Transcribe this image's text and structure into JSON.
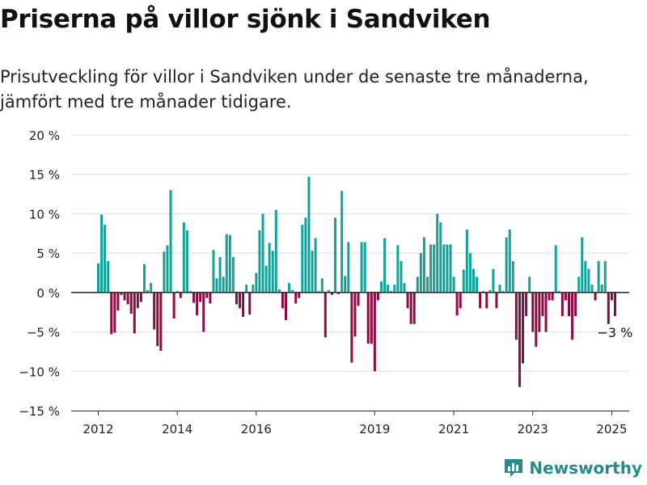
{
  "header": {
    "title": "Priserna på villor sjönk i Sandviken",
    "subtitle": "Prisutveckling för villor i Sandviken under de senaste tre månaderna, jämfört med tre månader tidigare."
  },
  "brand": {
    "name": "Newsworthy",
    "icon": "newsworthy-chart-logo-icon"
  },
  "colors": {
    "positive": "#12a297",
    "negative": "#8c0b42",
    "grid": "#dddddd",
    "zero": "#333333",
    "text": "#222222",
    "brand": "#2a8a86"
  },
  "chart_data": {
    "type": "bar",
    "x_start": "2012-01",
    "x_step": "month",
    "ylim": [
      -15,
      20
    ],
    "yticks": [
      -15,
      -10,
      -5,
      0,
      5,
      10,
      15,
      20
    ],
    "ytick_labels": [
      "−15 %",
      "−10 %",
      "−5 %",
      "0 %",
      "5 %",
      "10 %",
      "15 %",
      "20 %"
    ],
    "xticks": [
      {
        "month": 0,
        "label": "2012"
      },
      {
        "month": 24,
        "label": "2014"
      },
      {
        "month": 48,
        "label": "2016"
      },
      {
        "month": 84,
        "label": "2019"
      },
      {
        "month": 108,
        "label": "2021"
      },
      {
        "month": 132,
        "label": "2023"
      },
      {
        "month": 156,
        "label": "2025"
      }
    ],
    "grid": true,
    "annotation": {
      "text": "−3 %",
      "month": 156
    },
    "values": [
      3.7,
      9.9,
      8.6,
      4.0,
      -5.3,
      -5.1,
      -2.3,
      -0.3,
      -1.0,
      -1.5,
      -2.7,
      -5.2,
      -2.0,
      -1.2,
      3.6,
      0.3,
      1.2,
      -4.7,
      -6.8,
      -7.4,
      5.2,
      6.0,
      13.0,
      -3.3,
      0.2,
      -0.7,
      8.9,
      7.9,
      0.2,
      -1.3,
      -2.9,
      -1.2,
      -5.0,
      -0.7,
      -1.4,
      5.4,
      1.8,
      4.5,
      2.0,
      7.4,
      7.3,
      4.5,
      -1.5,
      -2.0,
      -3.1,
      1.0,
      -2.8,
      1.0,
      2.5,
      7.9,
      10.0,
      3.4,
      6.3,
      5.3,
      10.5,
      0.4,
      -2.0,
      -3.5,
      1.2,
      0.3,
      -1.4,
      -0.7,
      8.6,
      9.5,
      14.7,
      5.3,
      6.9,
      0.2,
      1.8,
      -5.7,
      0.3,
      -0.3,
      9.5,
      -0.2,
      12.9,
      2.1,
      6.4,
      -8.9,
      -5.6,
      -1.7,
      6.4,
      6.4,
      -6.5,
      -6.5,
      -10.0,
      -1.0,
      1.4,
      6.9,
      1.0,
      0.2,
      1.0,
      6.0,
      4.0,
      1.2,
      -2.0,
      -4.0,
      -4.0,
      2.0,
      5.0,
      7.0,
      2.0,
      6.1,
      6.1,
      10.0,
      8.9,
      6.1,
      6.1,
      6.1,
      2.0,
      -2.9,
      -2.0,
      2.9,
      8.0,
      5.0,
      3.0,
      2.0,
      -2.0,
      0.2,
      -2.0,
      0.3,
      3.0,
      -2.0,
      1.0,
      0.2,
      7.0,
      8.0,
      4.0,
      -6.0,
      -12.0,
      -9.0,
      -3.0,
      2.0,
      -5.0,
      -6.9,
      -5.0,
      -3.0,
      -5.0,
      -1.0,
      -1.0,
      6.0,
      0.2,
      -3.0,
      -1.0,
      -3.0,
      -6.0,
      -3.0,
      2.0,
      7.0,
      4.0,
      3.0,
      1.0,
      -1.0,
      4.0,
      1.0,
      4.0,
      -4.0,
      -1.0,
      -3.0
    ]
  }
}
